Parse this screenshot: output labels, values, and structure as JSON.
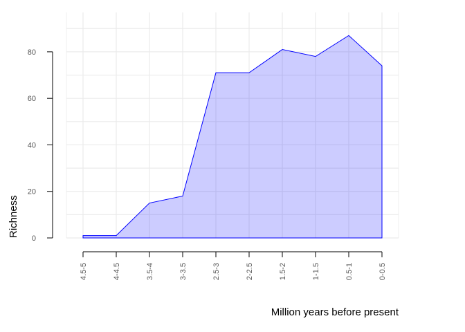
{
  "chart_data": {
    "type": "area",
    "title": "",
    "xlabel": "Million years before present",
    "ylabel": "Richness",
    "categories": [
      "4.5-5",
      "4-4.5",
      "3.5-4",
      "3-3.5",
      "2.5-3",
      "2-2.5",
      "1.5-2",
      "1-1.5",
      "0.5-1",
      "0-0.5"
    ],
    "values": [
      1,
      1,
      15,
      18,
      71,
      71,
      81,
      78,
      87,
      74
    ],
    "ylim": [
      0,
      100
    ],
    "yticks": [
      0,
      20,
      40,
      60,
      80
    ],
    "grid": true,
    "colors": {
      "fill": "rgba(0,0,255,0.2)",
      "line": "#0000ff",
      "grid": "#ebebeb",
      "axis": "#000000",
      "tick_text": "#555555"
    }
  }
}
